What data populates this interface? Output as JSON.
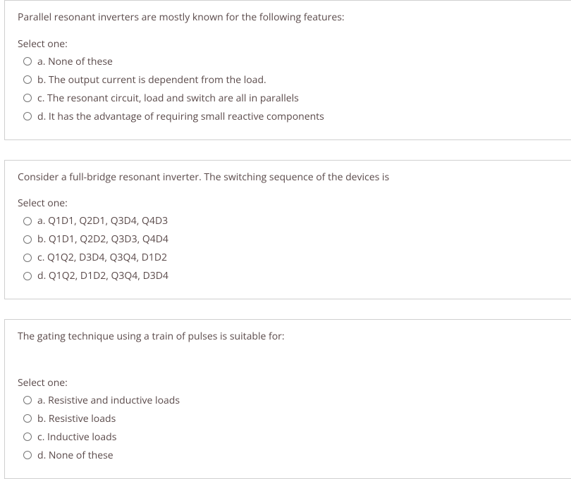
{
  "questions": [
    {
      "text": "Parallel resonant inverters are mostly known for the following features:",
      "select_label": "Select one:",
      "options": [
        {
          "label": "a. None of these"
        },
        {
          "label": "b. The output current is dependent from the load."
        },
        {
          "label": "c. The resonant circuit, load and switch are all in parallels"
        },
        {
          "label": "d. It has the advantage of requiring small reactive components"
        }
      ]
    },
    {
      "text": "Consider a full-bridge resonant inverter. The switching sequence of the devices is",
      "select_label": "Select one:",
      "options": [
        {
          "label": "a. Q1D1, Q2D1, Q3D4, Q4D3"
        },
        {
          "label": "b. Q1D1, Q2D2, Q3D3, Q4D4"
        },
        {
          "label": "c. Q1Q2, D3D4, Q3Q4, D1D2"
        },
        {
          "label": "d. Q1Q2, D1D2, Q3Q4, D3D4"
        }
      ]
    },
    {
      "text": "The gating technique using a train of pulses is suitable for:",
      "select_label": "Select one:",
      "options": [
        {
          "label": "a. Resistive and inductive loads"
        },
        {
          "label": "b. Resistive loads"
        },
        {
          "label": "c.  Inductive loads"
        },
        {
          "label": "d. None of these"
        }
      ]
    }
  ]
}
